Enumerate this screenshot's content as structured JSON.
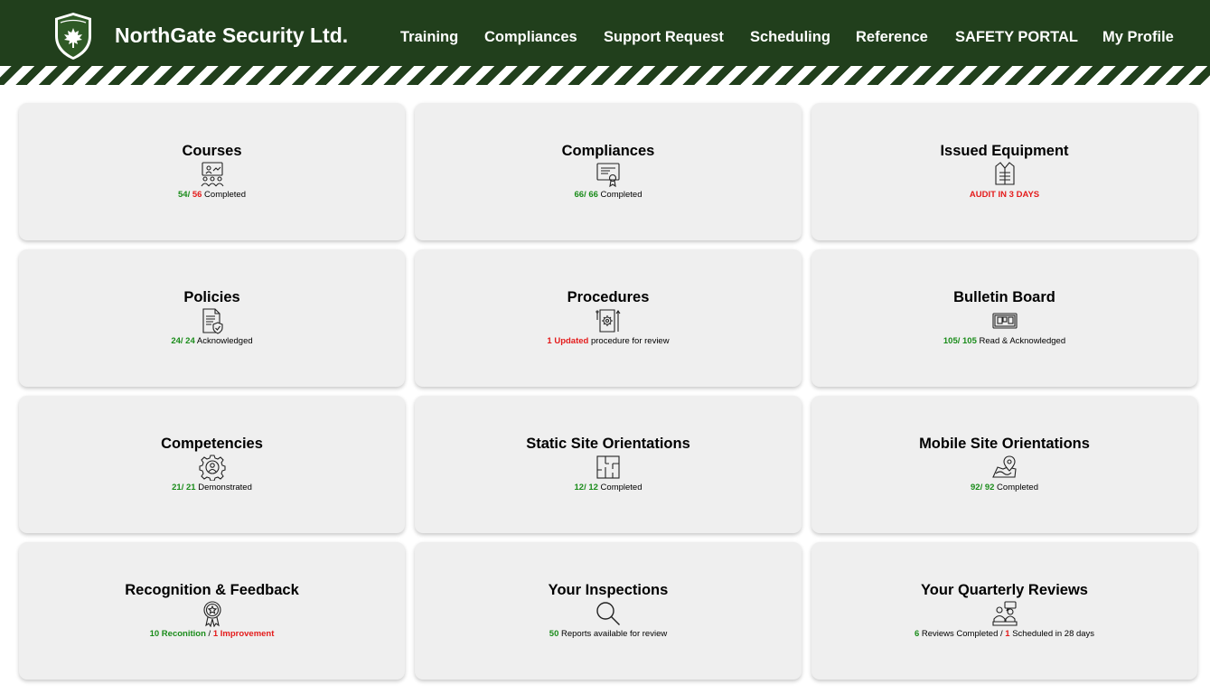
{
  "header": {
    "brand": "NorthGate Security Ltd.",
    "logo_text": "NORTHGATE SECURITY",
    "colors": {
      "background": "#213f1c",
      "text": "#ffffff"
    },
    "nav": [
      {
        "label": "Training"
      },
      {
        "label": "Compliances"
      },
      {
        "label": "Support Request"
      },
      {
        "label": "Scheduling"
      },
      {
        "label": "Reference"
      },
      {
        "label": "SAFETY PORTAL"
      },
      {
        "label": "My Profile"
      }
    ]
  },
  "status_colors": {
    "good": "#1a8c1a",
    "alert": "#e41b1b"
  },
  "cards": [
    {
      "title": "Courses",
      "icon": "classroom-icon",
      "status": {
        "a": "54",
        "sep": "/",
        "b": "56",
        "text": " Completed"
      }
    },
    {
      "title": "Compliances",
      "icon": "certificate-icon",
      "status": {
        "a": "66",
        "sep": "/",
        "b": "66",
        "text": " Completed"
      }
    },
    {
      "title": "Issued Equipment",
      "icon": "vest-icon",
      "status": {
        "alert": "AUDIT IN 3 DAYS"
      }
    },
    {
      "title": "Policies",
      "icon": "policy-document-icon",
      "status": {
        "a": "24",
        "sep": "/",
        "b": "24",
        "text": " Acknowledged"
      }
    },
    {
      "title": "Procedures",
      "icon": "procedure-gear-icon",
      "status": {
        "alert": "1 Updated",
        "text": " procedure for review"
      }
    },
    {
      "title": "Bulletin Board",
      "icon": "bulletin-board-icon",
      "status": {
        "a": "105",
        "sep": "/",
        "b": "105",
        "text": " Read & Acknowledged"
      }
    },
    {
      "title": "Competencies",
      "icon": "competency-gear-icon",
      "status": {
        "a": "21",
        "sep": "/",
        "b": "21",
        "text": " Demonstrated"
      }
    },
    {
      "title": "Static Site Orientations",
      "icon": "floor-plan-icon",
      "status": {
        "a": "12",
        "sep": "/",
        "b": "12",
        "text": " Completed"
      }
    },
    {
      "title": "Mobile Site Orientations",
      "icon": "map-pin-icon",
      "status": {
        "a": "92",
        "sep": "/",
        "b": "92",
        "text": " Completed"
      }
    },
    {
      "title": "Recognition & Feedback",
      "icon": "award-ribbon-icon",
      "status": {
        "a": "10 Reconition",
        "sep": " / ",
        "b": "1 Improvement"
      }
    },
    {
      "title": "Your Inspections",
      "icon": "magnifier-icon",
      "status": {
        "a": "50",
        "text": " Reports available for review"
      }
    },
    {
      "title": "Your Quarterly Reviews",
      "icon": "meeting-icon",
      "status": {
        "a": "6",
        "text": " Reviews Completed / ",
        "b": "1",
        "text2": " Scheduled in 28 days"
      }
    }
  ]
}
